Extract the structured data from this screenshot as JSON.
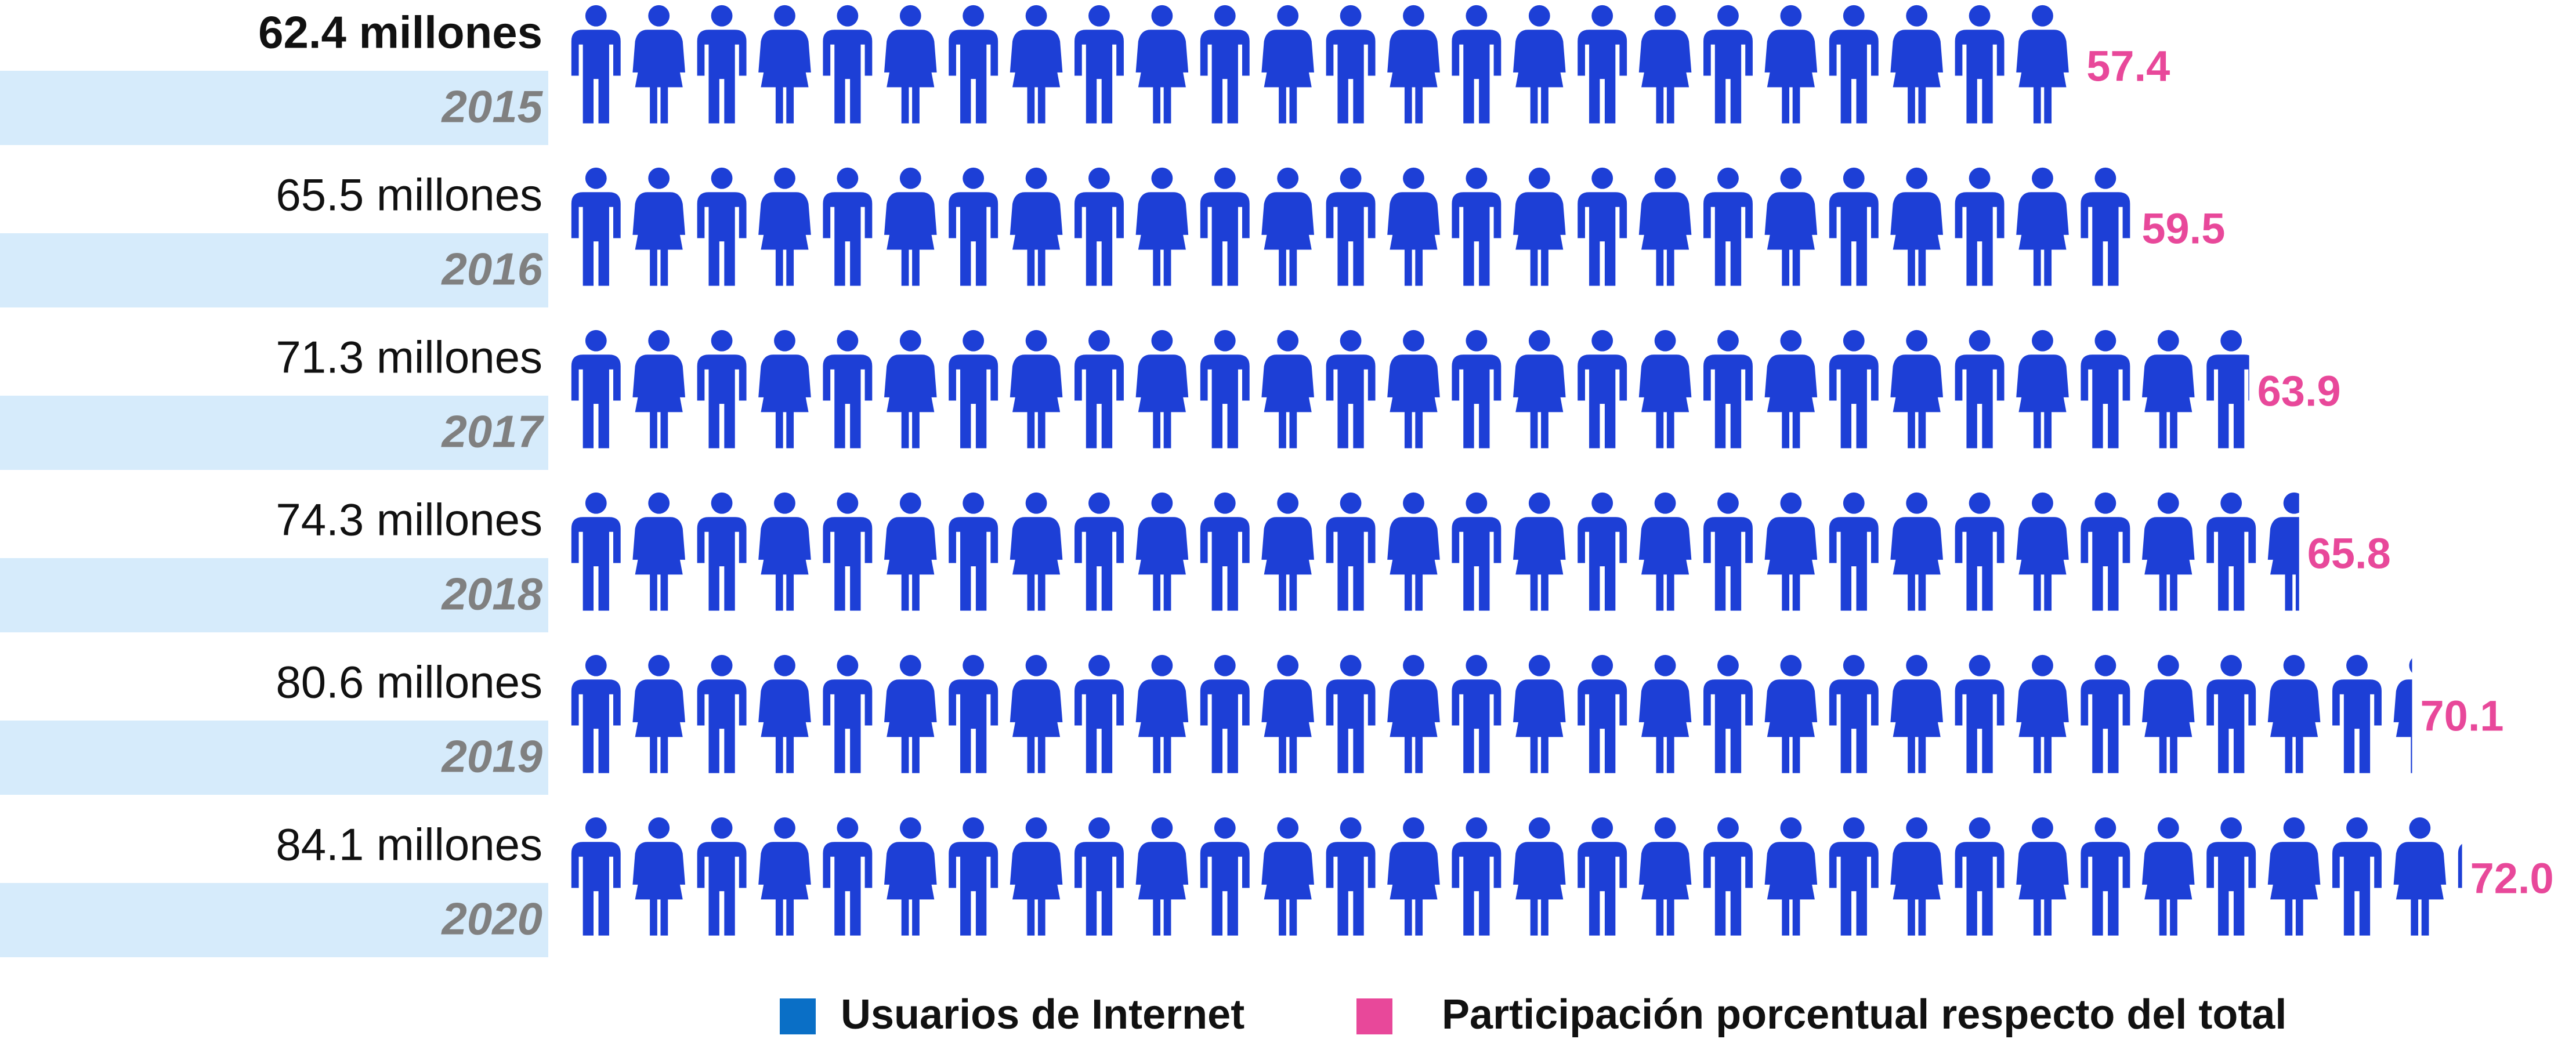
{
  "chart_data": {
    "type": "pictogram",
    "categories": [
      "2015",
      "2016",
      "2017",
      "2018",
      "2019",
      "2020"
    ],
    "icon_color": "#1d3fd6",
    "series": [
      {
        "name": "Usuarios de Internet",
        "color": "#0a6fc6",
        "values": [
          62.4,
          65.5,
          71.3,
          74.3,
          80.6,
          84.1
        ],
        "value_labels": [
          "62.4 millones",
          "65.5 millones",
          "71.3 millones",
          "74.3 millones",
          "80.6 millones",
          "84.1 millones"
        ]
      },
      {
        "name": "Participación porcentual respecto del total",
        "color": "#e8489a",
        "values": [
          57.4,
          59.5,
          63.9,
          65.8,
          70.1,
          72.0
        ],
        "value_labels": [
          "57.4",
          "59.5",
          "63.9",
          "65.8",
          "70.1",
          "72.0"
        ]
      }
    ]
  }
}
